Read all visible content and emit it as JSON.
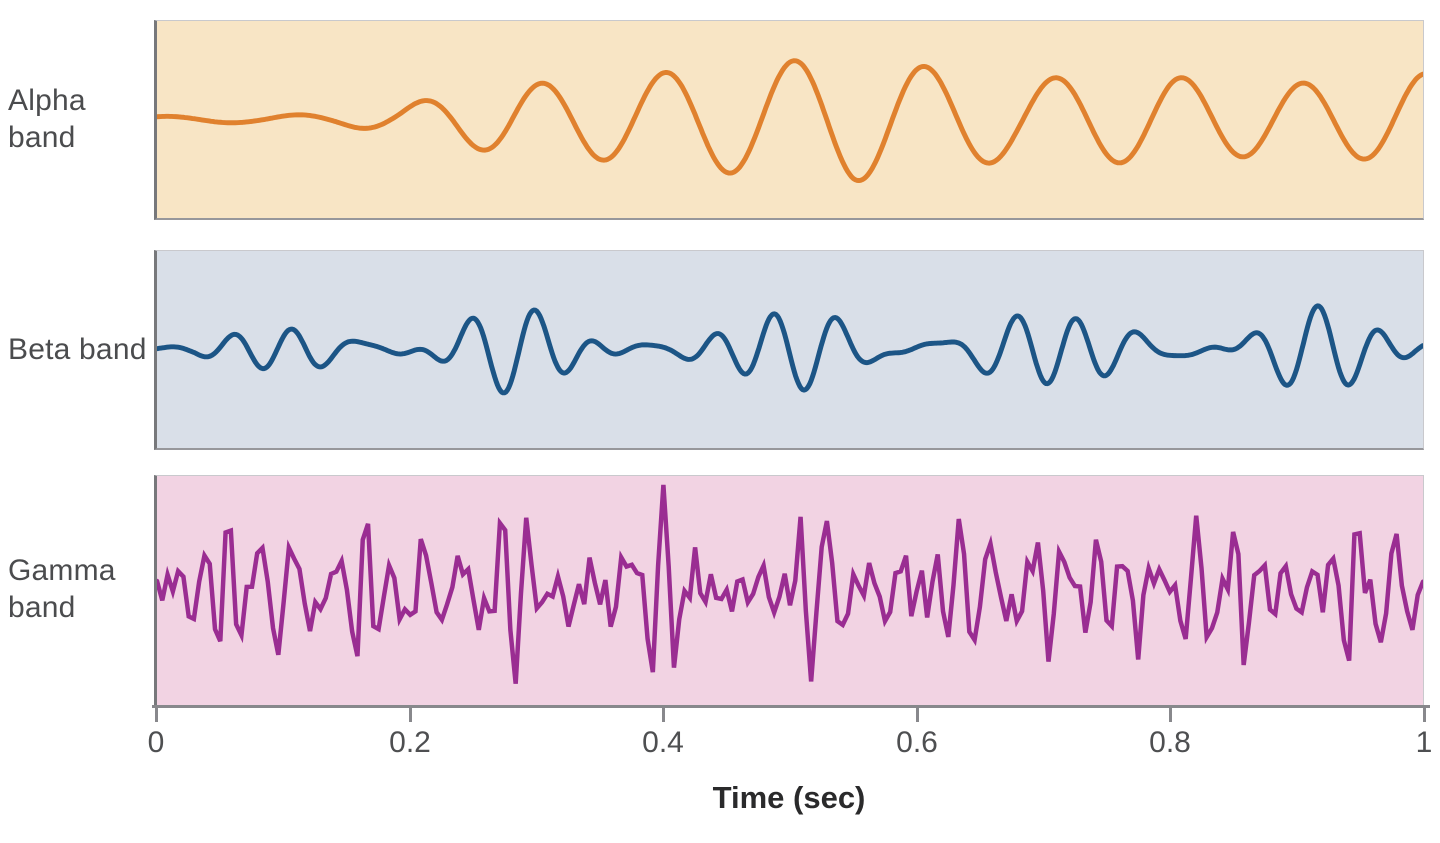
{
  "figure": {
    "description": "Three stacked EEG waveform panels showing Alpha, Beta and Gamma frequency bands over one second"
  },
  "chart_data": {
    "type": "line",
    "title": "",
    "xlabel": "Time (sec)",
    "x_range": [
      0,
      1
    ],
    "x_ticks": [
      "0",
      "0.2",
      "0.4",
      "0.6",
      "0.8",
      "1"
    ],
    "x_tick_values": [
      0,
      0.2,
      0.4,
      0.6,
      0.8,
      1
    ],
    "grid": false,
    "legend": "none",
    "bands": [
      {
        "label": "Alpha band",
        "approx_freq_hz": 10,
        "line_color": "#e0812e",
        "bg_color": "#f8e5c5",
        "stroke_width": 5,
        "samples": 680,
        "scale": 0.62,
        "jagged": false,
        "noise": 0,
        "seed": 1,
        "envelope": [
          [
            0,
            0.05
          ],
          [
            0.08,
            0.06
          ],
          [
            0.14,
            0.12
          ],
          [
            0.19,
            0.3
          ],
          [
            0.24,
            0.75
          ],
          [
            0.28,
            1
          ],
          [
            0.55,
            1
          ],
          [
            0.62,
            0.82
          ],
          [
            0.68,
            0.68
          ],
          [
            0.74,
            0.85
          ],
          [
            0.8,
            1
          ],
          [
            1,
            1.05
          ]
        ],
        "components": [
          {
            "f": 10,
            "a": 0.8,
            "p": 1.2
          },
          {
            "f": 8.4,
            "a": 0.22,
            "p": 0.8
          }
        ]
      },
      {
        "label": "Beta band",
        "approx_freq_hz": 20,
        "line_color": "#1c5586",
        "bg_color": "#d9dfe8",
        "stroke_width": 5,
        "samples": 900,
        "scale": 0.45,
        "jagged": false,
        "noise": 0,
        "seed": 2,
        "envelope": [
          [
            0,
            0.12
          ],
          [
            0.03,
            0.15
          ],
          [
            0.07,
            0.5
          ],
          [
            0.12,
            0.9
          ],
          [
            0.16,
            1
          ],
          [
            1,
            1
          ]
        ],
        "components": [
          {
            "f": 21,
            "a": 0.42,
            "p": 0
          },
          {
            "f": 16.3,
            "a": 0.25,
            "p": 2.1
          },
          {
            "f": 25.7,
            "a": 0.2,
            "p": 4.2
          },
          {
            "f": 13.1,
            "a": 0.13,
            "p": 1.1
          }
        ]
      },
      {
        "label": "Gamma band",
        "approx_freq_hz": 60,
        "line_color": "#9a2d92",
        "bg_color": "#f2d3e3",
        "stroke_width": 4.5,
        "samples": 240,
        "scale": 0.5,
        "jagged": true,
        "noise": 0.2,
        "seed": 7,
        "envelope": [
          [
            0,
            1
          ],
          [
            1,
            1
          ]
        ],
        "components": [
          {
            "f": 31,
            "a": 0.28,
            "p": 5.2
          },
          {
            "f": 38,
            "a": 0.42,
            "p": 0.5
          },
          {
            "f": 47,
            "a": 0.38,
            "p": 2.8
          },
          {
            "f": 55,
            "a": 0.3,
            "p": 1.3
          },
          {
            "f": 64,
            "a": 0.26,
            "p": 4.4
          },
          {
            "f": 73,
            "a": 0.2,
            "p": 0.9
          },
          {
            "f": 84,
            "a": 0.16,
            "p": 3.6
          },
          {
            "f": 96,
            "a": 0.12,
            "p": 2.0
          }
        ]
      }
    ],
    "colors": {
      "axis": "#88888c",
      "tick_label": "#4e4f51",
      "band_label": "#4b4c4e",
      "xlabel": "#2a2a2b"
    }
  }
}
